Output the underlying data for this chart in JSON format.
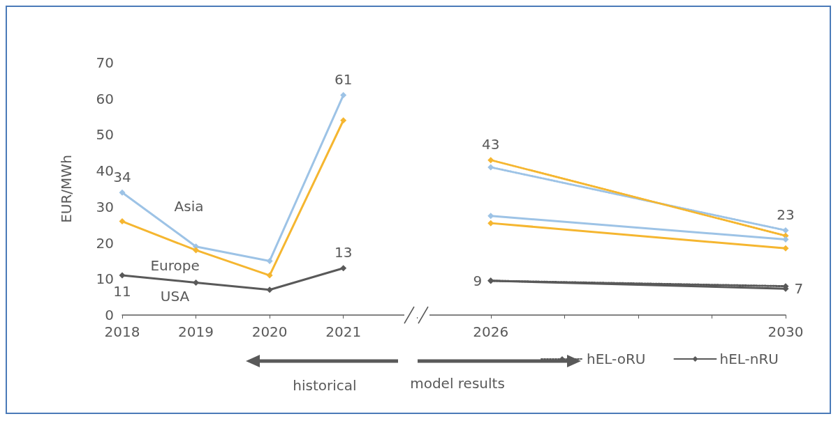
{
  "chart_data": {
    "type": "line",
    "ylabel": "EUR/MWh",
    "categories": [
      "2018",
      "2019",
      "2020",
      "2021",
      null,
      "2026",
      null,
      null,
      null,
      "2030"
    ],
    "ylim": [
      0,
      70
    ],
    "yticks": [
      0,
      10,
      20,
      30,
      40,
      50,
      60,
      70
    ],
    "grid": false,
    "marker": "diamond",
    "legend": "bottom right",
    "series": [
      {
        "color": "#9dc3e6",
        "values": [
          34,
          19,
          15,
          61,
          null,
          null,
          null,
          null,
          null,
          null
        ],
        "value_labels": [
          "34",
          null,
          null,
          "61",
          null,
          null,
          null,
          null,
          null,
          null
        ]
      },
      {
        "color": "#f5b630",
        "values": [
          26,
          18,
          11,
          54,
          null,
          null,
          null,
          null,
          null,
          null
        ]
      },
      {
        "color": "#595959",
        "values": [
          11,
          9,
          7,
          13,
          null,
          null,
          null,
          null,
          null,
          null
        ],
        "value_labels": [
          "11",
          null,
          null,
          "13",
          null,
          null,
          null,
          null,
          null,
          null
        ]
      },
      {
        "color": "#9dc3e6",
        "line_style": "dotted",
        "values": [
          null,
          null,
          null,
          null,
          null,
          41,
          null,
          null,
          null,
          23.5
        ],
        "value_labels": [
          null,
          null,
          null,
          null,
          null,
          null,
          null,
          null,
          null,
          "23"
        ]
      },
      {
        "color": "#f5b630",
        "line_style": "dotted",
        "values": [
          null,
          null,
          null,
          null,
          null,
          43,
          null,
          null,
          null,
          22
        ],
        "value_labels": [
          null,
          null,
          null,
          null,
          null,
          "43",
          null,
          null,
          null,
          null
        ]
      },
      {
        "name": "hEL-oRU",
        "color": "#595959",
        "line_style": "dotted",
        "values": [
          null,
          null,
          null,
          null,
          null,
          9.5,
          null,
          null,
          null,
          8
        ]
      },
      {
        "color": "#9dc3e6",
        "line_style": "solid",
        "values": [
          null,
          null,
          null,
          null,
          null,
          27.5,
          null,
          null,
          null,
          21
        ]
      },
      {
        "color": "#f5b630",
        "line_style": "solid",
        "values": [
          null,
          null,
          null,
          null,
          null,
          25.5,
          null,
          null,
          null,
          18.5
        ]
      },
      {
        "name": "hEL-nRU",
        "color": "#595959",
        "line_style": "solid",
        "values": [
          null,
          null,
          null,
          null,
          null,
          9.5,
          null,
          null,
          null,
          7.3
        ],
        "value_labels": [
          null,
          null,
          null,
          null,
          null,
          "9",
          null,
          null,
          null,
          "7"
        ]
      }
    ],
    "annotations": [
      "Asia",
      "Europe",
      "USA",
      "historical",
      "model results"
    ]
  }
}
